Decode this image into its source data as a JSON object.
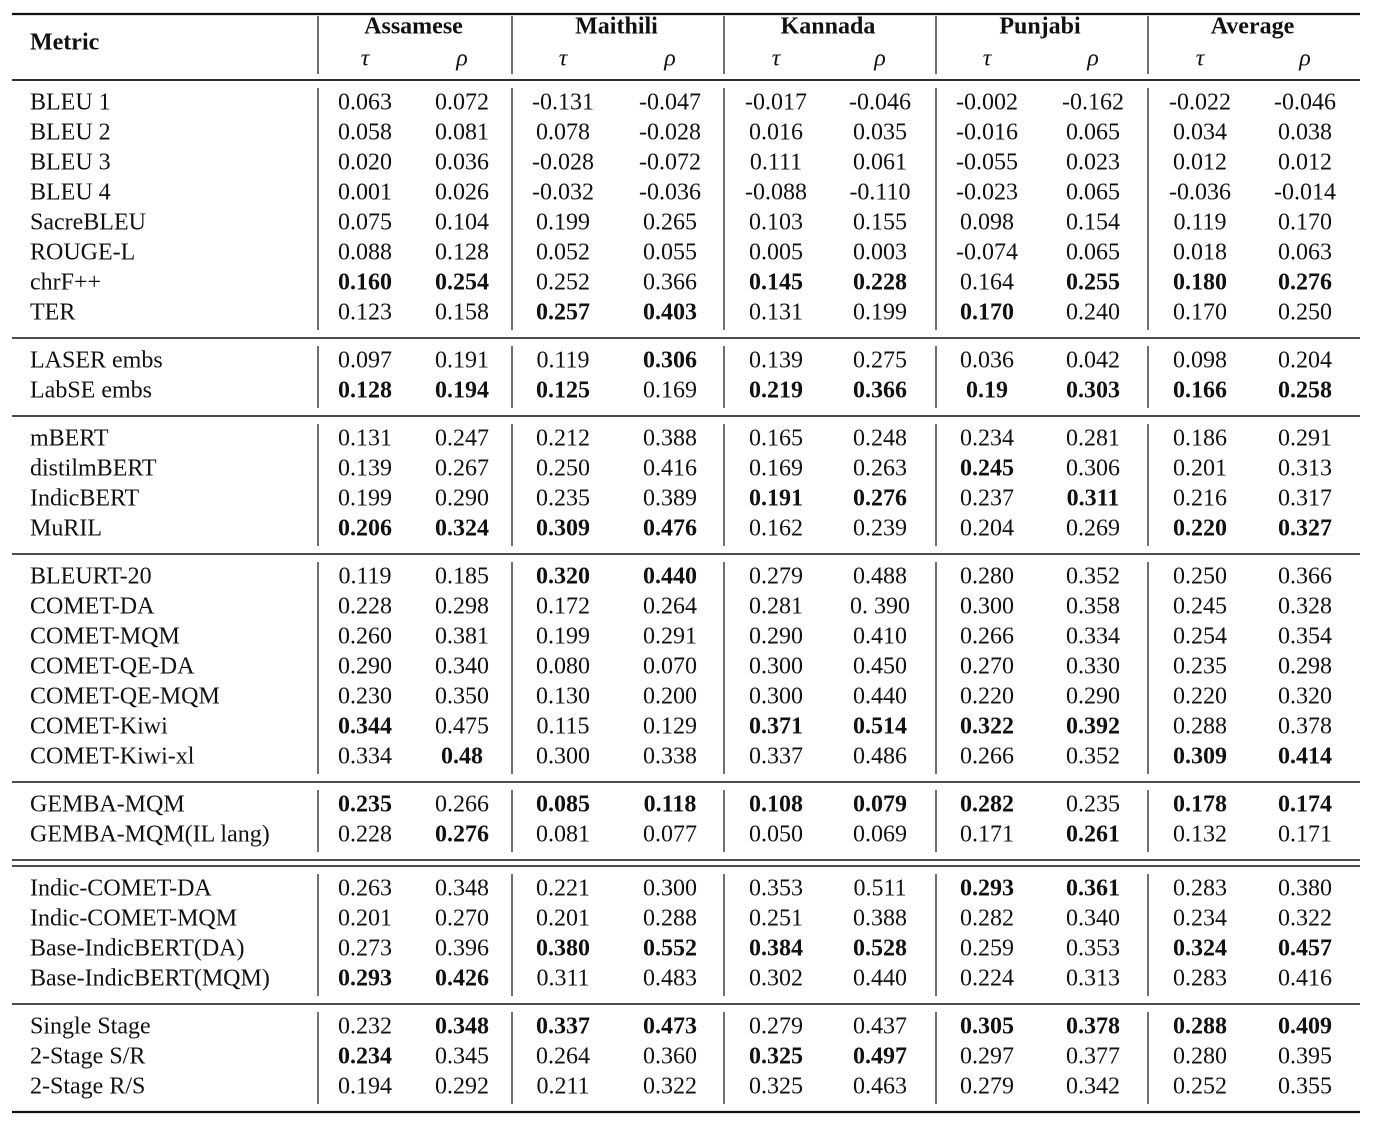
{
  "header": {
    "metric": "Metric",
    "groups": [
      {
        "name": "Assamese",
        "sub": [
          "τ",
          "ρ"
        ]
      },
      {
        "name": "Maithili",
        "sub": [
          "τ",
          "ρ"
        ]
      },
      {
        "name": "Kannada",
        "sub": [
          "τ",
          "ρ"
        ]
      },
      {
        "name": "Punjabi",
        "sub": [
          "τ",
          "ρ"
        ]
      },
      {
        "name": "Average",
        "sub": [
          "τ",
          "ρ"
        ]
      }
    ]
  },
  "sections": [
    {
      "rows": [
        {
          "metric": "BLEU 1",
          "cells": [
            "0.063",
            "0.072",
            "-0.131",
            "-0.047",
            "-0.017",
            "-0.046",
            "-0.002",
            "-0.162",
            "-0.022",
            "-0.046"
          ]
        },
        {
          "metric": "BLEU 2",
          "cells": [
            "0.058",
            "0.081",
            "0.078",
            "-0.028",
            "0.016",
            "0.035",
            "-0.016",
            "0.065",
            "0.034",
            "0.038"
          ]
        },
        {
          "metric": "BLEU 3",
          "cells": [
            "0.020",
            "0.036",
            "-0.028",
            "-0.072",
            "0.111",
            "0.061",
            "-0.055",
            "0.023",
            "0.012",
            "0.012"
          ]
        },
        {
          "metric": "BLEU 4",
          "cells": [
            "0.001",
            "0.026",
            "-0.032",
            "-0.036",
            "-0.088",
            "-0.110",
            "-0.023",
            "0.065",
            "-0.036",
            "-0.014"
          ]
        },
        {
          "metric": "SacreBLEU",
          "cells": [
            "0.075",
            "0.104",
            "0.199",
            "0.265",
            "0.103",
            "0.155",
            "0.098",
            "0.154",
            "0.119",
            "0.170"
          ]
        },
        {
          "metric": "ROUGE-L",
          "cells": [
            "0.088",
            "0.128",
            "0.052",
            "0.055",
            "0.005",
            "0.003",
            "-0.074",
            "0.065",
            "0.018",
            "0.063"
          ]
        },
        {
          "metric": "chrF++",
          "cells": [
            "0.160",
            "0.254",
            "0.252",
            "0.366",
            "0.145",
            "0.228",
            "0.164",
            "0.255",
            "0.180",
            "0.276"
          ],
          "bold": [
            0,
            1,
            4,
            5,
            7,
            8,
            9
          ]
        },
        {
          "metric": "TER",
          "cells": [
            "0.123",
            "0.158",
            "0.257",
            "0.403",
            "0.131",
            "0.199",
            "0.170",
            "0.240",
            "0.170",
            "0.250"
          ],
          "bold": [
            2,
            3,
            6
          ]
        }
      ]
    },
    {
      "rows": [
        {
          "metric": "LASER embs",
          "cells": [
            "0.097",
            "0.191",
            "0.119",
            "0.306",
            "0.139",
            "0.275",
            "0.036",
            "0.042",
            "0.098",
            "0.204"
          ],
          "bold": [
            3
          ]
        },
        {
          "metric": "LabSE embs",
          "cells": [
            "0.128",
            "0.194",
            "0.125",
            "0.169",
            "0.219",
            "0.366",
            "0.19",
            "0.303",
            "0.166",
            "0.258"
          ],
          "bold": [
            0,
            1,
            2,
            4,
            5,
            6,
            7,
            8,
            9
          ]
        }
      ]
    },
    {
      "rows": [
        {
          "metric": "mBERT",
          "cells": [
            "0.131",
            "0.247",
            "0.212",
            "0.388",
            "0.165",
            "0.248",
            "0.234",
            "0.281",
            "0.186",
            "0.291"
          ]
        },
        {
          "metric": "distilmBERT",
          "cells": [
            "0.139",
            "0.267",
            "0.250",
            "0.416",
            "0.169",
            "0.263",
            "0.245",
            "0.306",
            "0.201",
            "0.313"
          ],
          "bold": [
            6
          ]
        },
        {
          "metric": "IndicBERT",
          "cells": [
            "0.199",
            "0.290",
            "0.235",
            "0.389",
            "0.191",
            "0.276",
            "0.237",
            "0.311",
            "0.216",
            "0.317"
          ],
          "bold": [
            4,
            5,
            7
          ]
        },
        {
          "metric": "MuRIL",
          "cells": [
            "0.206",
            "0.324",
            "0.309",
            "0.476",
            "0.162",
            "0.239",
            "0.204",
            "0.269",
            "0.220",
            "0.327"
          ],
          "bold": [
            0,
            1,
            2,
            3,
            8,
            9
          ]
        }
      ]
    },
    {
      "rows": [
        {
          "metric": "BLEURT-20",
          "cells": [
            "0.119",
            "0.185",
            "0.320",
            "0.440",
            "0.279",
            "0.488",
            "0.280",
            "0.352",
            "0.250",
            "0.366"
          ],
          "bold": [
            2,
            3
          ]
        },
        {
          "metric": "COMET-DA",
          "cells": [
            "0.228",
            "0.298",
            "0.172",
            "0.264",
            "0.281",
            "0. 390",
            "0.300",
            "0.358",
            "0.245",
            "0.328"
          ]
        },
        {
          "metric": "COMET-MQM",
          "cells": [
            "0.260",
            "0.381",
            "0.199",
            "0.291",
            "0.290",
            "0.410",
            "0.266",
            "0.334",
            "0.254",
            "0.354"
          ]
        },
        {
          "metric": "COMET-QE-DA",
          "cells": [
            "0.290",
            "0.340",
            "0.080",
            "0.070",
            "0.300",
            "0.450",
            "0.270",
            "0.330",
            "0.235",
            "0.298"
          ]
        },
        {
          "metric": "COMET-QE-MQM",
          "cells": [
            "0.230",
            "0.350",
            "0.130",
            "0.200",
            "0.300",
            "0.440",
            "0.220",
            "0.290",
            "0.220",
            "0.320"
          ]
        },
        {
          "metric": "COMET-Kiwi",
          "cells": [
            "0.344",
            "0.475",
            "0.115",
            "0.129",
            "0.371",
            "0.514",
            "0.322",
            "0.392",
            "0.288",
            "0.378"
          ],
          "bold": [
            0,
            4,
            5,
            6,
            7
          ]
        },
        {
          "metric": "COMET-Kiwi-xl",
          "cells": [
            "0.334",
            "0.48",
            "0.300",
            "0.338",
            "0.337",
            "0.486",
            "0.266",
            "0.352",
            "0.309",
            "0.414"
          ],
          "bold": [
            1,
            8,
            9
          ]
        }
      ]
    },
    {
      "rows": [
        {
          "metric": "GEMBA-MQM",
          "cells": [
            "0.235",
            "0.266",
            "0.085",
            "0.118",
            "0.108",
            "0.079",
            "0.282",
            "0.235",
            "0.178",
            "0.174"
          ],
          "bold": [
            0,
            2,
            3,
            4,
            5,
            6,
            8,
            9
          ]
        },
        {
          "metric": "GEMBA-MQM(IL lang)",
          "cells": [
            "0.228",
            "0.276",
            "0.081",
            "0.077",
            "0.050",
            "0.069",
            "0.171",
            "0.261",
            "0.132",
            "0.171"
          ],
          "bold": [
            1,
            7
          ]
        }
      ]
    },
    {
      "double_rule_before": true,
      "rows": [
        {
          "metric": "Indic-COMET-DA",
          "cells": [
            "0.263",
            "0.348",
            "0.221",
            "0.300",
            "0.353",
            "0.511",
            "0.293",
            "0.361",
            "0.283",
            "0.380"
          ],
          "bold": [
            6,
            7
          ]
        },
        {
          "metric": "Indic-COMET-MQM",
          "cells": [
            "0.201",
            "0.270",
            "0.201",
            "0.288",
            "0.251",
            "0.388",
            "0.282",
            "0.340",
            "0.234",
            "0.322"
          ]
        },
        {
          "metric": "Base-IndicBERT(DA)",
          "cells": [
            "0.273",
            "0.396",
            "0.380",
            "0.552",
            "0.384",
            "0.528",
            "0.259",
            "0.353",
            "0.324",
            "0.457"
          ],
          "bold": [
            2,
            3,
            4,
            5,
            8,
            9
          ]
        },
        {
          "metric": "Base-IndicBERT(MQM)",
          "cells": [
            "0.293",
            "0.426",
            "0.311",
            "0.483",
            "0.302",
            "0.440",
            "0.224",
            "0.313",
            "0.283",
            "0.416"
          ],
          "bold": [
            0,
            1
          ]
        }
      ]
    },
    {
      "rows": [
        {
          "metric": "Single Stage",
          "cells": [
            "0.232",
            "0.348",
            "0.337",
            "0.473",
            "0.279",
            "0.437",
            "0.305",
            "0.378",
            "0.288",
            "0.409"
          ],
          "bold": [
            1,
            2,
            3,
            6,
            7,
            8,
            9
          ]
        },
        {
          "metric": "2-Stage S/R",
          "cells": [
            "0.234",
            "0.345",
            "0.264",
            "0.360",
            "0.325",
            "0.497",
            "0.297",
            "0.377",
            "0.280",
            "0.395"
          ],
          "bold": [
            0,
            4,
            5
          ]
        },
        {
          "metric": "2-Stage R/S",
          "cells": [
            "0.194",
            "0.292",
            "0.211",
            "0.322",
            "0.325",
            "0.463",
            "0.279",
            "0.342",
            "0.252",
            "0.355"
          ]
        }
      ]
    }
  ]
}
